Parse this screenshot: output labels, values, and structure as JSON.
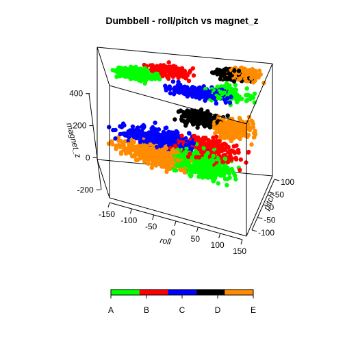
{
  "chart_data": {
    "type": "scatter",
    "title": "Dumbbell - roll/pitch vs magnet_z",
    "xlabel": "roll",
    "ylabel": "pitch",
    "zlabel": "magnet_z",
    "xlim": [
      -150,
      150
    ],
    "ylim": [
      -120,
      120
    ],
    "zlim": [
      -250,
      450
    ],
    "x_ticks": [
      "-150",
      "-100",
      "-50",
      "0",
      "50",
      "100",
      "150"
    ],
    "y_ticks": [
      "-100",
      "-50",
      "0",
      "50",
      "100"
    ],
    "z_ticks": [
      "-200",
      "0",
      "200",
      "400"
    ],
    "legend": {
      "placement": "bottom",
      "labels": [
        "A",
        "B",
        "C",
        "D",
        "E"
      ],
      "colors": [
        "#00ff00",
        "#ff0000",
        "#0000ff",
        "#000000",
        "#ff8c00"
      ]
    },
    "clusters": [
      {
        "class": "A",
        "roll": [
          -130,
          -30
        ],
        "pitch": [
          40,
          100
        ],
        "magnet_z": [
          320,
          400
        ],
        "n": 260
      },
      {
        "class": "A",
        "roll": [
          -40,
          120
        ],
        "pitch": [
          -60,
          60
        ],
        "magnet_z": [
          -140,
          40
        ],
        "n": 380
      },
      {
        "class": "A",
        "roll": [
          20,
          140
        ],
        "pitch": [
          30,
          100
        ],
        "magnet_z": [
          280,
          360
        ],
        "n": 120
      },
      {
        "class": "B",
        "roll": [
          -80,
          30
        ],
        "pitch": [
          60,
          110
        ],
        "magnet_z": [
          340,
          430
        ],
        "n": 150
      },
      {
        "class": "B",
        "roll": [
          -40,
          140
        ],
        "pitch": [
          -40,
          60
        ],
        "magnet_z": [
          -60,
          120
        ],
        "n": 260
      },
      {
        "class": "C",
        "roll": [
          -50,
          110
        ],
        "pitch": [
          20,
          80
        ],
        "magnet_z": [
          290,
          360
        ],
        "n": 260
      },
      {
        "class": "C",
        "roll": [
          -150,
          60
        ],
        "pitch": [
          -80,
          20
        ],
        "magnet_z": [
          40,
          160
        ],
        "n": 340
      },
      {
        "class": "D",
        "roll": [
          -20,
          90
        ],
        "pitch": [
          0,
          60
        ],
        "magnet_z": [
          140,
          250
        ],
        "n": 220
      },
      {
        "class": "D",
        "roll": [
          40,
          130
        ],
        "pitch": [
          70,
          110
        ],
        "magnet_z": [
          360,
          440
        ],
        "n": 170
      },
      {
        "class": "E",
        "roll": [
          60,
          150
        ],
        "pitch": [
          70,
          120
        ],
        "magnet_z": [
          360,
          450
        ],
        "n": 170
      },
      {
        "class": "E",
        "roll": [
          -150,
          40
        ],
        "pitch": [
          -100,
          0
        ],
        "magnet_z": [
          -60,
          100
        ],
        "n": 380
      },
      {
        "class": "E",
        "roll": [
          40,
          150
        ],
        "pitch": [
          0,
          80
        ],
        "magnet_z": [
          60,
          220
        ],
        "n": 220
      }
    ]
  }
}
